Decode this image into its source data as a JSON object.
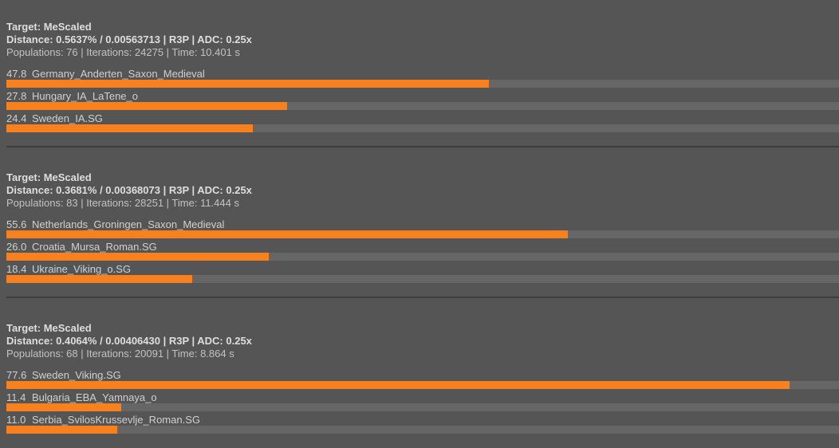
{
  "colors": {
    "background": "#555555",
    "track": "#666666",
    "accent": "#f8811f",
    "separator": "#3e3e3e"
  },
  "models": [
    {
      "target_line": "Target: MeScaled",
      "distance_line": "Distance: 0.5637% / 0.00563713 | R3P | ADC: 0.25x",
      "stats_line": "Populations: 76 | Iterations: 24275 | Time: 10.401 s",
      "rows": [
        {
          "value": "47.8",
          "name": "Germany_Anderten_Saxon_Medieval"
        },
        {
          "value": "27.8",
          "name": "Hungary_IA_LaTene_o"
        },
        {
          "value": "24.4",
          "name": "Sweden_IA.SG"
        }
      ]
    },
    {
      "target_line": "Target: MeScaled",
      "distance_line": "Distance: 0.3681% / 0.00368073 | R3P | ADC: 0.25x",
      "stats_line": "Populations: 83 | Iterations: 28251 | Time: 11.444 s",
      "rows": [
        {
          "value": "55.6",
          "name": "Netherlands_Groningen_Saxon_Medieval"
        },
        {
          "value": "26.0",
          "name": "Croatia_Mursa_Roman.SG"
        },
        {
          "value": "18.4",
          "name": "Ukraine_Viking_o.SG"
        }
      ]
    },
    {
      "target_line": "Target: MeScaled",
      "distance_line": "Distance: 0.4064% / 0.00406430 | R3P | ADC: 0.25x",
      "stats_line": "Populations: 68 | Iterations: 20091 | Time: 8.864 s",
      "rows": [
        {
          "value": "77.6",
          "name": "Sweden_Viking.SG"
        },
        {
          "value": "11.4",
          "name": "Bulgaria_EBA_Yamnaya_o"
        },
        {
          "value": "11.0",
          "name": "Serbia_SvilosKrussevlje_Roman.SG"
        }
      ]
    }
  ],
  "chart_data": [
    {
      "type": "bar",
      "title": "Target: MeScaled — Distance: 0.5637% / 0.00563713 | R3P | ADC: 0.25x",
      "categories": [
        "Germany_Anderten_Saxon_Medieval",
        "Hungary_IA_LaTene_o",
        "Sweden_IA.SG"
      ],
      "values": [
        47.8,
        27.8,
        24.4
      ]
    },
    {
      "type": "bar",
      "title": "Target: MeScaled — Distance: 0.3681% / 0.00368073 | R3P | ADC: 0.25x",
      "categories": [
        "Netherlands_Groningen_Saxon_Medieval",
        "Croatia_Mursa_Roman.SG",
        "Ukraine_Viking_o.SG"
      ],
      "values": [
        55.6,
        26.0,
        18.4
      ]
    },
    {
      "type": "bar",
      "title": "Target: MeScaled — Distance: 0.4064% / 0.00406430 | R3P | ADC: 0.25x",
      "categories": [
        "Sweden_Viking.SG",
        "Bulgaria_EBA_Yamnaya_o",
        "Serbia_SvilosKrussevlje_Roman.SG"
      ],
      "values": [
        77.6,
        11.4,
        11.0
      ]
    }
  ]
}
